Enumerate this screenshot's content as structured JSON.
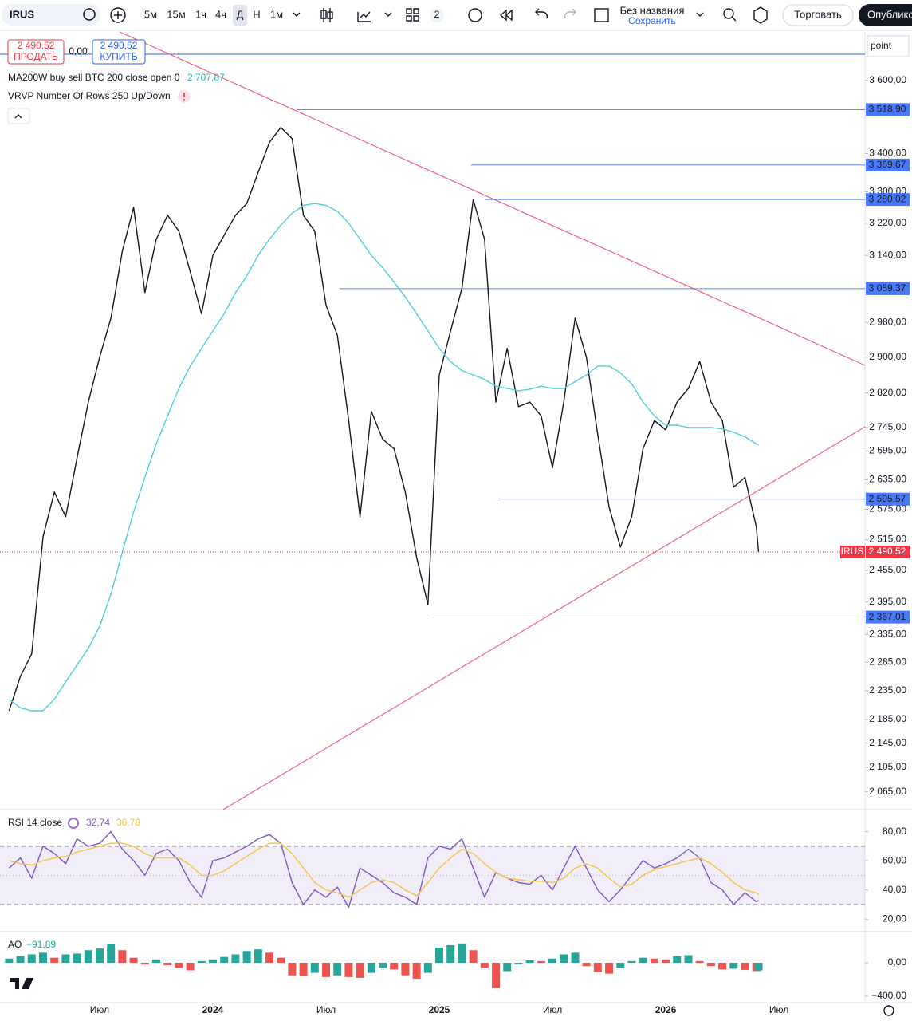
{
  "toolbar": {
    "symbol": "IRUS",
    "intervals": [
      "5м",
      "15м",
      "1ч",
      "4ч",
      "Д",
      "Н",
      "1м"
    ],
    "active_interval": "Д",
    "layouts_count": "2",
    "layout_name": "Без названия",
    "layout_status": "Сохранить",
    "trade": "Торговать",
    "publish": "Опублико",
    "scale_mode": "point"
  },
  "order_panel": {
    "sell_price": "2 490,52",
    "sell": "ПРОДАТЬ",
    "spread": "0,00",
    "buy_price": "2 490,52",
    "buy": "КУПИТЬ"
  },
  "chart_data": [
    {
      "type": "line",
      "log": true,
      "grid": false,
      "indicator": "VRVP Number Of Rows 250 Up/Down",
      "xlim": [
        2023.06,
        2026.88
      ],
      "xticks": [
        {
          "value": 2023.5,
          "label": "Июл"
        },
        2024,
        {
          "value": 2024.5,
          "label": "Июл"
        },
        2025,
        {
          "value": 2025.5,
          "label": "Июл"
        },
        2026,
        {
          "value": 2026.5,
          "label": "Июл"
        }
      ],
      "ylim": [
        2039,
        3739
      ],
      "yticks": [
        {
          "value": 3600,
          "label": "3 600,00"
        },
        {
          "value": 3400,
          "label": "3 400,00"
        },
        {
          "value": 3300,
          "label": "3 300,00"
        },
        {
          "value": 3220,
          "label": "3 220,00"
        },
        {
          "value": 3140,
          "label": "3 140,00"
        },
        {
          "value": 2980,
          "label": "2 980,00"
        },
        {
          "value": 2900,
          "label": "2 900,00"
        },
        {
          "value": 2820,
          "label": "2 820,00"
        },
        {
          "value": 2745,
          "label": "2 745,00"
        },
        {
          "value": 2695,
          "label": "2 695,00"
        },
        {
          "value": 2635,
          "label": "2 635,00"
        },
        {
          "value": 2575,
          "label": "2 575,00"
        },
        {
          "value": 2515,
          "label": "2 515,00"
        },
        {
          "value": 2455,
          "label": "2 455,00"
        },
        {
          "value": 2395,
          "label": "2 395,00"
        },
        {
          "value": 2335,
          "label": "2 335,00"
        },
        {
          "value": 2285,
          "label": "2 285,00"
        },
        {
          "value": 2235,
          "label": "2 235,00"
        },
        {
          "value": 2185,
          "label": "2 185,00"
        },
        {
          "value": 2145,
          "label": "2 145,00"
        },
        {
          "value": 2105,
          "label": "2 105,00"
        },
        {
          "value": 2065,
          "label": "2 065,00"
        }
      ],
      "x": [
        2023.1,
        2023.15,
        2023.2,
        2023.25,
        2023.3,
        2023.35,
        2023.4,
        2023.45,
        2023.5,
        2023.55,
        2023.6,
        2023.65,
        2023.7,
        2023.75,
        2023.8,
        2023.85,
        2023.9,
        2023.95,
        2024,
        2024.05,
        2024.1,
        2024.15,
        2024.2,
        2024.25,
        2024.3,
        2024.35,
        2024.4,
        2024.45,
        2024.5,
        2024.55,
        2024.6,
        2024.65,
        2024.7,
        2024.75,
        2024.8,
        2024.85,
        2024.9,
        2024.95,
        2025,
        2025.05,
        2025.1,
        2025.15,
        2025.2,
        2025.25,
        2025.3,
        2025.35,
        2025.4,
        2025.45,
        2025.5,
        2025.55,
        2025.6,
        2025.65,
        2025.7,
        2025.75,
        2025.8,
        2025.85,
        2025.9,
        2025.95,
        2026,
        2026.05,
        2026.1,
        2026.15,
        2026.2,
        2026.25,
        2026.3,
        2026.35,
        2026.4,
        2026.41
      ],
      "series": [
        {
          "color": "#131722",
          "values": [
            2200,
            2260,
            2300,
            2520,
            2610,
            2560,
            2680,
            2800,
            2900,
            2990,
            3150,
            3260,
            3050,
            3180,
            3240,
            3200,
            3100,
            3000,
            3140,
            3190,
            3240,
            3270,
            3350,
            3430,
            3470,
            3440,
            3240,
            3200,
            3020,
            2950,
            2760,
            2560,
            2780,
            2720,
            2700,
            2610,
            2480,
            2390,
            2860,
            2960,
            3060,
            3280,
            3180,
            2800,
            2920,
            2790,
            2800,
            2770,
            2660,
            2800,
            2990,
            2900,
            2730,
            2580,
            2500,
            2560,
            2700,
            2760,
            2740,
            2800,
            2830,
            2890,
            2800,
            2760,
            2620,
            2640,
            2540,
            2490.52
          ]
        },
        {
          "name": "MA200W buy sell BTC 200 close open 0",
          "legend_value": "2 707,87",
          "color": "#4fd1d9",
          "values": [
            2220,
            2205,
            2200,
            2200,
            2220,
            2250,
            2280,
            2310,
            2350,
            2410,
            2490,
            2570,
            2640,
            2710,
            2770,
            2830,
            2880,
            2920,
            2960,
            3000,
            3050,
            3090,
            3140,
            3180,
            3215,
            3245,
            3265,
            3270,
            3265,
            3250,
            3220,
            3180,
            3140,
            3110,
            3075,
            3040,
            3000,
            2960,
            2920,
            2890,
            2870,
            2860,
            2850,
            2835,
            2830,
            2825,
            2828,
            2835,
            2830,
            2830,
            2845,
            2860,
            2880,
            2880,
            2865,
            2840,
            2800,
            2770,
            2750,
            2750,
            2745,
            2745,
            2745,
            2742,
            2735,
            2725,
            2710,
            2707.87
          ]
        }
      ],
      "levels": [
        {
          "value": 3518.9,
          "label": "3 518,90",
          "from": 2024.37
        },
        {
          "value": 3369.67,
          "label": "3 369,67",
          "from": 2025.14
        },
        {
          "value": 3280.02,
          "label": "3 280,02",
          "from": 2025.2
        },
        {
          "value": 3059.37,
          "label": "3 059,37",
          "from": 2024.56
        },
        {
          "value": 2595.57,
          "label": "2 595,57",
          "from": 2025.26
        },
        {
          "value": 2367.01,
          "label": "2 367,01",
          "from": 2024.95
        }
      ],
      "level_color": "#2962ff",
      "last_price": {
        "value": 2490.52,
        "label": "2 490,52",
        "tag": "IRUS",
        "color": "#f23645"
      }
    },
    {
      "type": "line",
      "title": "RSI 14 close",
      "xlim": [
        2023.06,
        2026.88
      ],
      "ylim": [
        13,
        94
      ],
      "yticks": [
        {
          "value": 80,
          "label": "80,00"
        },
        {
          "value": 60,
          "label": "60,00"
        },
        {
          "value": 40,
          "label": "40,00"
        },
        {
          "value": 20,
          "label": "20,00"
        }
      ],
      "band": [
        30,
        70
      ],
      "midline": 50,
      "band_color": "#7e57c2",
      "x": [
        2023.1,
        2023.15,
        2023.2,
        2023.25,
        2023.3,
        2023.35,
        2023.4,
        2023.45,
        2023.5,
        2023.55,
        2023.6,
        2023.65,
        2023.7,
        2023.75,
        2023.8,
        2023.85,
        2023.9,
        2023.95,
        2024,
        2024.05,
        2024.1,
        2024.15,
        2024.2,
        2024.25,
        2024.3,
        2024.35,
        2024.4,
        2024.45,
        2024.5,
        2024.55,
        2024.6,
        2024.65,
        2024.7,
        2024.75,
        2024.8,
        2024.85,
        2024.9,
        2024.95,
        2025,
        2025.05,
        2025.1,
        2025.15,
        2025.2,
        2025.25,
        2025.3,
        2025.35,
        2025.4,
        2025.45,
        2025.5,
        2025.55,
        2025.6,
        2025.65,
        2025.7,
        2025.75,
        2025.8,
        2025.85,
        2025.9,
        2025.95,
        2026,
        2026.05,
        2026.1,
        2026.15,
        2026.2,
        2026.25,
        2026.3,
        2026.35,
        2026.4,
        2026.41
      ],
      "series": [
        {
          "legend_value": "32,74",
          "color": "#7e57c2",
          "values": [
            55,
            62,
            48,
            70,
            65,
            58,
            75,
            70,
            72,
            80,
            68,
            60,
            50,
            65,
            68,
            60,
            45,
            35,
            60,
            62,
            66,
            70,
            75,
            78,
            72,
            45,
            30,
            40,
            35,
            42,
            28,
            55,
            50,
            45,
            38,
            35,
            30,
            62,
            70,
            68,
            75,
            55,
            35,
            52,
            48,
            45,
            44,
            50,
            40,
            55,
            70,
            55,
            40,
            32,
            40,
            50,
            60,
            55,
            58,
            62,
            68,
            62,
            45,
            40,
            30,
            38,
            32,
            32.74
          ]
        },
        {
          "legend_value": "36,78",
          "color": "#f5c342",
          "values": [
            60,
            58,
            57,
            60,
            62,
            63,
            66,
            68,
            70,
            72,
            72,
            70,
            65,
            62,
            62,
            62,
            57,
            50,
            50,
            53,
            58,
            63,
            68,
            72,
            72,
            65,
            55,
            45,
            40,
            38,
            35,
            40,
            45,
            47,
            45,
            40,
            36,
            45,
            55,
            62,
            68,
            65,
            58,
            52,
            48,
            47,
            46,
            46,
            45,
            48,
            55,
            58,
            55,
            48,
            42,
            44,
            50,
            54,
            56,
            58,
            60,
            62,
            58,
            52,
            45,
            40,
            38,
            36.78
          ]
        }
      ]
    },
    {
      "type": "bar",
      "title": "AO",
      "xlim": [
        2023.06,
        2026.88
      ],
      "ylim": [
        -457,
        352
      ],
      "yticks": [
        {
          "value": 0,
          "label": "0,00"
        },
        {
          "value": -400,
          "label": "−400,00"
        }
      ],
      "rising_color": "#26a69a",
      "falling_color": "#ef5350",
      "x": [
        2023.1,
        2023.15,
        2023.2,
        2023.25,
        2023.3,
        2023.35,
        2023.4,
        2023.45,
        2023.5,
        2023.55,
        2023.6,
        2023.65,
        2023.7,
        2023.75,
        2023.8,
        2023.85,
        2023.9,
        2023.95,
        2024,
        2024.05,
        2024.1,
        2024.15,
        2024.2,
        2024.25,
        2024.3,
        2024.35,
        2024.4,
        2024.45,
        2024.5,
        2024.55,
        2024.6,
        2024.65,
        2024.7,
        2024.75,
        2024.8,
        2024.85,
        2024.9,
        2024.95,
        2025,
        2025.05,
        2025.1,
        2025.15,
        2025.2,
        2025.25,
        2025.3,
        2025.35,
        2025.4,
        2025.45,
        2025.5,
        2025.55,
        2025.6,
        2025.65,
        2025.7,
        2025.75,
        2025.8,
        2025.85,
        2025.9,
        2025.95,
        2026,
        2026.05,
        2026.1,
        2026.15,
        2026.2,
        2026.25,
        2026.3,
        2026.35,
        2026.4,
        2026.41
      ],
      "series": [
        {
          "legend_value": "−91,89",
          "color": "#26a69a",
          "values": [
            50,
            80,
            100,
            120,
            60,
            100,
            110,
            150,
            170,
            220,
            150,
            60,
            -20,
            40,
            -30,
            -60,
            -90,
            20,
            40,
            70,
            100,
            140,
            160,
            120,
            60,
            -150,
            -160,
            -120,
            -170,
            -150,
            -170,
            -180,
            -120,
            -60,
            -80,
            -150,
            -190,
            -120,
            180,
            210,
            230,
            150,
            -60,
            -300,
            -100,
            -20,
            30,
            20,
            50,
            100,
            120,
            -40,
            -110,
            -130,
            -60,
            20,
            60,
            50,
            40,
            80,
            90,
            20,
            -40,
            -80,
            -70,
            -85,
            -100,
            -91.89
          ]
        }
      ]
    }
  ]
}
